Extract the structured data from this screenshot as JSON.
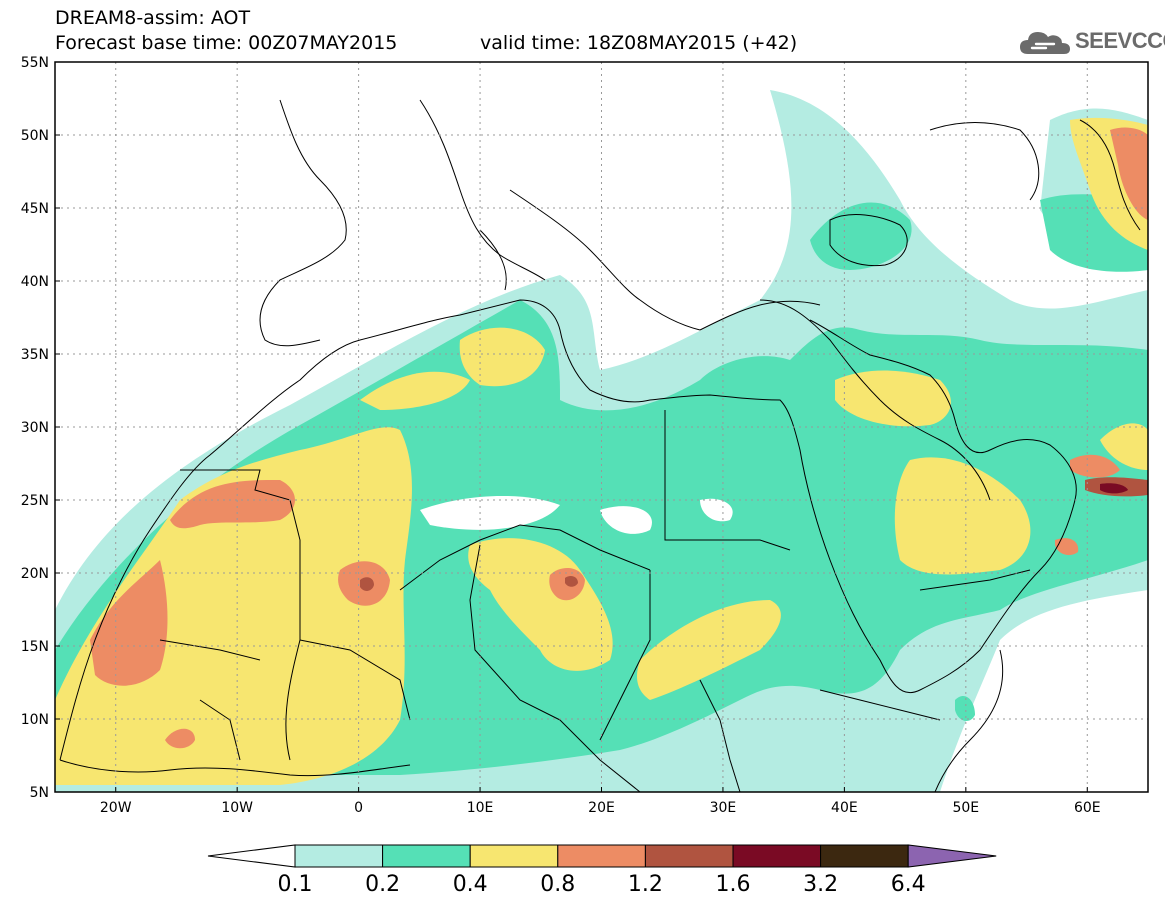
{
  "header": {
    "title_line1": "DREAM8-assim: AOT",
    "title_line2": "Forecast base time: 00Z07MAY2015",
    "valid_time": "valid time: 18Z08MAY2015 (+42)"
  },
  "logo": {
    "text": "SEEVCCC",
    "icon": "cloud-icon",
    "color": "#6b6b6b"
  },
  "map": {
    "projection": "lat-lon",
    "lon_range": [
      -25,
      65
    ],
    "lat_range": [
      5,
      55
    ],
    "lat_labels": [
      "55N",
      "50N",
      "45N",
      "40N",
      "35N",
      "30N",
      "25N",
      "20N",
      "15N",
      "10N",
      "5N"
    ],
    "lon_labels": [
      "20W",
      "10W",
      "0",
      "10E",
      "20E",
      "30E",
      "40E",
      "50E",
      "60E"
    ],
    "gridlines": "dotted"
  },
  "colorbar": {
    "levels": [
      "0.1",
      "0.2",
      "0.4",
      "0.8",
      "1.2",
      "1.6",
      "3.2",
      "6.4"
    ],
    "colors": [
      "#b4ece2",
      "#55e0b6",
      "#f7e670",
      "#ed8c64",
      "#b05440",
      "#7a0a24",
      "#3c2810",
      "#8c64b0"
    ]
  }
}
